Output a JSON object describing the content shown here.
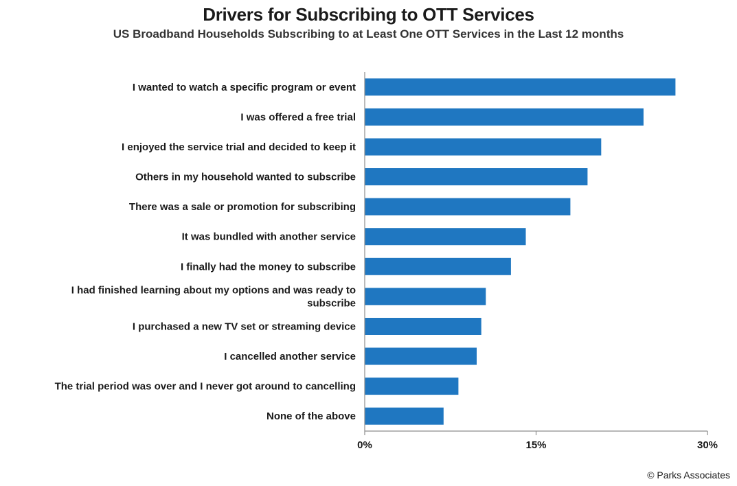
{
  "chart_data": {
    "type": "bar",
    "orientation": "horizontal",
    "title": "Drivers for Subscribing to OTT Services",
    "subtitle": "US Broadband Households Subscribing to at Least One OTT Services in the Last 12 months",
    "categories": [
      "I wanted to watch a specific program or event",
      "I was offered a free trial",
      "I enjoyed the service trial and decided to keep it",
      "Others in my household wanted to subscribe",
      "There was a sale or promotion for subscribing",
      "It was bundled with another service",
      "I finally had the money to subscribe",
      "I had finished learning about my options and was ready to subscribe",
      "I purchased a new TV set or streaming device",
      "I cancelled another service",
      "The trial period was over and I never got around to cancelling",
      "None of the above"
    ],
    "category_lines": [
      [
        "I wanted to watch a specific program or event"
      ],
      [
        "I was offered a free trial"
      ],
      [
        "I enjoyed the service trial and decided to keep it"
      ],
      [
        "Others in my household wanted to subscribe"
      ],
      [
        "There was a sale or promotion for subscribing"
      ],
      [
        "It was bundled with another service"
      ],
      [
        "I finally had the money to subscribe"
      ],
      [
        "I had finished learning about my options and was ready to",
        "subscribe"
      ],
      [
        "I purchased a new TV set or streaming device"
      ],
      [
        "I cancelled another service"
      ],
      [
        "The trial period was over and I never got around to cancelling"
      ],
      [
        "None of the above"
      ]
    ],
    "values": [
      27.2,
      24.4,
      20.7,
      19.5,
      18.0,
      14.1,
      12.8,
      10.6,
      10.2,
      9.8,
      8.2,
      6.9
    ],
    "xlim": [
      0,
      30
    ],
    "ticks": [
      0,
      15,
      30
    ],
    "tick_labels": [
      "0%",
      "15%",
      "30%"
    ],
    "grid": false,
    "bar_color": "#1f77c1",
    "axis_color": "#8c8c8c"
  },
  "footer": {
    "copyright": "© Parks Associates"
  }
}
